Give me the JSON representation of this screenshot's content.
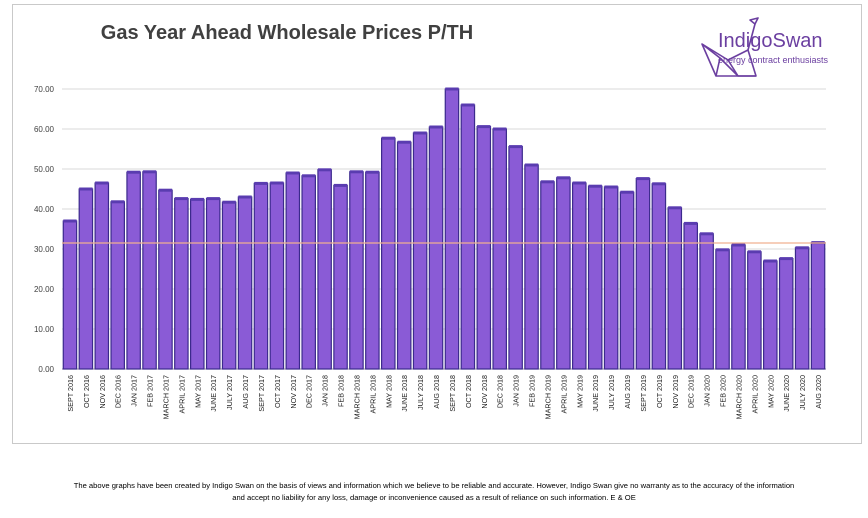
{
  "brand": {
    "name": "IndigoSwan",
    "tagline": "energy contract enthusiasts",
    "color": "#6b3fa0"
  },
  "disclaimer": {
    "line1": "The above graphs have been created by Indigo Swan on the basis of views and information which we believe to be reliable and accurate. However, Indigo Swan give no warranty as to the accuracy of the information",
    "line2": "and accept no liability for any loss, damage or inconvenience caused as a result of reliance on such information. E & OE"
  },
  "chart_data": {
    "type": "bar",
    "title": "Gas Year Ahead Wholesale Prices P/TH",
    "xlabel": "",
    "ylabel": "",
    "ylim": [
      0,
      70
    ],
    "yticks": [
      "0.00",
      "10.00",
      "20.00",
      "30.00",
      "40.00",
      "50.00",
      "60.00",
      "70.00"
    ],
    "grid": true,
    "bar_color": "#8a5bd6",
    "bar_edge_color": "#3b2a8c",
    "reference_line": {
      "value": 31.5,
      "color": "#f0b090"
    },
    "categories": [
      "SEPT 2016",
      "OCT 2016",
      "NOV 2016",
      "DEC 2016",
      "JAN 2017",
      "FEB 2017",
      "MARCH 2017",
      "APRIL 2017",
      "MAY 2017",
      "JUNE 2017",
      "JULY 2017",
      "AUG 2017",
      "SEPT 2017",
      "OCT 2017",
      "NOV 2017",
      "DEC 2017",
      "JAN 2018",
      "FEB 2018",
      "MARCH 2018",
      "APRIL 2018",
      "MAY 2018",
      "JUNE 2018",
      "JULY 2018",
      "AUG 2018",
      "SEPT 2018",
      "OCT 2018",
      "NOV 2018",
      "DEC 2018",
      "JAN 2019",
      "FEB 2019",
      "MARCH 2019",
      "APRIL 2019",
      "MAY 2019",
      "JUNE 2019",
      "JULY 2019",
      "AUG 2019",
      "SEPT 2019",
      "OCT 2019",
      "NOV 2019",
      "DEC 2019",
      "JAN 2020",
      "FEB 2020",
      "MARCH 2020",
      "APRIL 2020",
      "MAY 2020",
      "JUNE 2020",
      "JULY 2020",
      "AUG 2020"
    ],
    "values": [
      37.0,
      45.0,
      46.5,
      41.8,
      49.2,
      49.3,
      44.7,
      42.6,
      42.4,
      42.6,
      41.7,
      43.0,
      46.4,
      46.5,
      49.0,
      48.3,
      49.8,
      45.9,
      49.3,
      49.2,
      57.7,
      56.7,
      59.0,
      60.5,
      70.0,
      66.0,
      60.6,
      60.0,
      55.6,
      51.0,
      46.8,
      47.8,
      46.5,
      45.7,
      45.5,
      44.2,
      47.6,
      46.3,
      40.3,
      36.4,
      33.8,
      29.8,
      31.0,
      29.3,
      27.0,
      27.6,
      30.3,
      31.6
    ]
  }
}
